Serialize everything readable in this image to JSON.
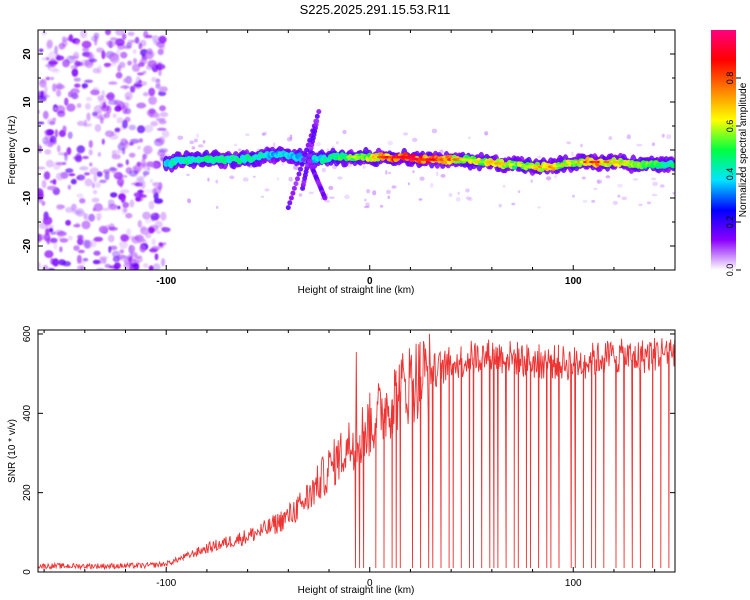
{
  "title": "S225.2025.291.15.53.R11",
  "chart_data": [
    {
      "type": "heatmap",
      "name": "spectrogram",
      "xlabel": "Height of straight line (km)",
      "ylabel": "Frequency (Hz)",
      "xlim": [
        -163,
        150
      ],
      "ylim": [
        -25,
        25
      ],
      "xticks": [
        -100,
        0,
        100
      ],
      "xtick_labels": [
        "-100",
        "0",
        "100"
      ],
      "yticks": [
        -20,
        -10,
        0,
        10,
        20
      ],
      "ytick_labels": [
        "-20",
        "-10",
        "0",
        "10",
        "20"
      ],
      "colorbar": {
        "label": "Normalized spectral amplitude",
        "range": [
          0,
          1
        ],
        "ticks": [
          0,
          0.2,
          0.4,
          0.6,
          0.8
        ],
        "tick_labels": [
          "0.0",
          "0.2",
          "0.4",
          "0.6",
          "0.8"
        ],
        "colormap": [
          "#ffffff",
          "#8a00ff",
          "#0000ff",
          "#00e5ff",
          "#00ff40",
          "#ffff00",
          "#ff8000",
          "#ff0000",
          "#ff0080"
        ]
      },
      "noise_region_x": [
        -163,
        -100
      ],
      "ridge": {
        "x": [
          -100,
          -92,
          -85,
          -78,
          -70,
          -62,
          -55,
          -48,
          -42,
          -36,
          -30,
          -24,
          -18,
          -12,
          -6,
          0,
          6,
          12,
          18,
          24,
          30,
          36,
          42,
          48,
          54,
          60,
          66,
          72,
          78,
          84,
          90,
          96,
          102,
          108,
          114,
          120,
          126,
          132,
          138,
          144,
          150
        ],
        "frequency": [
          -3,
          -2,
          -2,
          -2,
          -2,
          -2,
          -1.5,
          -1,
          -1,
          -1.5,
          -2,
          -2,
          -1.5,
          -1.5,
          -1.5,
          -1.5,
          -1.5,
          -1.5,
          -1.5,
          -2,
          -2,
          -2,
          -2,
          -2,
          -2.5,
          -2.5,
          -3,
          -3,
          -3.5,
          -3.5,
          -3.5,
          -3,
          -2.5,
          -2.5,
          -2.5,
          -2.5,
          -3,
          -3,
          -3,
          -3,
          -3
        ],
        "amplitude": [
          0.35,
          0.4,
          0.4,
          0.45,
          0.4,
          0.4,
          0.4,
          0.3,
          0.35,
          0.3,
          0.3,
          0.35,
          0.45,
          0.5,
          0.55,
          0.6,
          0.75,
          0.9,
          0.95,
          0.9,
          0.9,
          0.8,
          0.7,
          0.6,
          0.6,
          0.65,
          0.6,
          0.55,
          0.6,
          0.7,
          0.7,
          0.6,
          0.6,
          0.8,
          0.75,
          0.65,
          0.6,
          0.55,
          0.5,
          0.45,
          0.45
        ]
      }
    },
    {
      "type": "line",
      "name": "snr",
      "color": "#ee3333",
      "xlabel": "Height of straight line (km)",
      "ylabel": "SNR (10 * v/v)",
      "xlim": [
        -163,
        150
      ],
      "ylim": [
        0,
        610
      ],
      "xticks": [
        -100,
        0,
        100
      ],
      "xtick_labels": [
        "-100",
        "0",
        "100"
      ],
      "yticks": [
        0,
        200,
        400,
        600
      ],
      "ytick_labels": [
        "0",
        "200",
        "400",
        "600"
      ],
      "x": [
        -163,
        -150,
        -130,
        -110,
        -100,
        -90,
        -80,
        -70,
        -60,
        -50,
        -40,
        -30,
        -20,
        -10,
        0,
        10,
        20,
        30,
        40,
        50,
        60,
        70,
        80,
        90,
        100,
        110,
        120,
        130,
        140,
        150
      ],
      "values": [
        15,
        15,
        15,
        16,
        20,
        40,
        60,
        75,
        90,
        110,
        140,
        190,
        260,
        320,
        370,
        430,
        480,
        505,
        525,
        540,
        545,
        540,
        530,
        530,
        525,
        535,
        545,
        540,
        550,
        560
      ],
      "dropout_x": [
        -7,
        -5,
        -3,
        3,
        7,
        11,
        13,
        15,
        21,
        25,
        29,
        31,
        35,
        39,
        41,
        45,
        49,
        51,
        55,
        59,
        61,
        63,
        67,
        71,
        73,
        77,
        79,
        83,
        87,
        89,
        93,
        99,
        101,
        105,
        109,
        111,
        115,
        121,
        125,
        129,
        133,
        139,
        143,
        147
      ],
      "dropout_value": 10
    }
  ]
}
